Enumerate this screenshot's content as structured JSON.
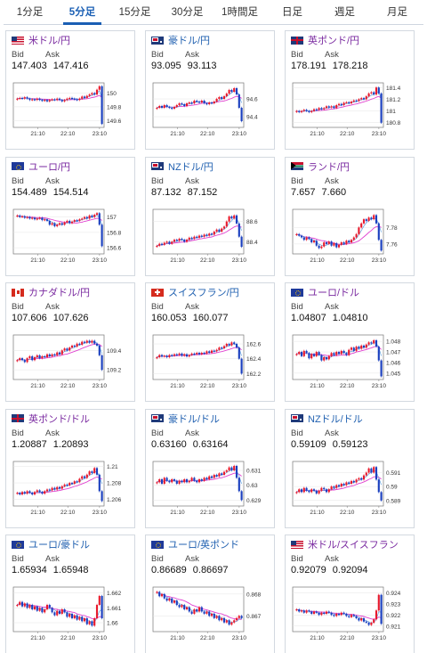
{
  "tabs": [
    {
      "label": "1分足",
      "active": false
    },
    {
      "label": "5分足",
      "active": true
    },
    {
      "label": "15分足",
      "active": false
    },
    {
      "label": "30分足",
      "active": false
    },
    {
      "label": "1時間足",
      "active": false
    },
    {
      "label": "日足",
      "active": false
    },
    {
      "label": "週足",
      "active": false
    },
    {
      "label": "月足",
      "active": false
    }
  ],
  "labels": {
    "bid": "Bid",
    "ask": "Ask"
  },
  "colors": {
    "tab_active": "#1a5fb4",
    "pair_link": "#2060b0",
    "pair_visited": "#7a2aa0",
    "candle_up": "#e8192c",
    "candle_down": "#1a3fbf",
    "ma_line": "#e040d0",
    "ma_line2": "#5fa0e0"
  },
  "cards": [
    {
      "pair": "米ドル/円",
      "flags": [
        "us",
        "jp"
      ],
      "visited": true,
      "bid": "147.403",
      "ask": "147.416",
      "chart_data": {
        "type": "candlestick",
        "x_ticks": [
          "21:10",
          "22:10",
          "23:10"
        ],
        "y_ticks": [
          "150",
          "149.8",
          "149.6"
        ],
        "y_range": [
          149.5,
          150.15
        ],
        "closes": [
          149.92,
          149.93,
          149.92,
          149.94,
          149.92,
          149.9,
          149.91,
          149.9,
          149.92,
          149.9,
          149.89,
          149.9,
          149.88,
          149.9,
          149.91,
          149.9,
          149.92,
          149.9,
          149.88,
          149.9,
          149.92,
          149.93,
          149.92,
          149.91,
          149.9,
          149.92,
          149.95,
          149.93,
          149.96,
          149.98,
          150.0,
          149.98,
          150.05,
          150.1,
          149.55
        ]
      }
    },
    {
      "pair": "豪ドル/円",
      "flags": [
        "au",
        "jp"
      ],
      "visited": false,
      "bid": "93.095",
      "ask": "93.113",
      "chart_data": {
        "type": "candlestick",
        "x_ticks": [
          "21:10",
          "22:10",
          "23:10"
        ],
        "y_ticks": [
          "94.6",
          "94.4"
        ],
        "y_range": [
          94.28,
          94.78
        ],
        "closes": [
          94.5,
          94.52,
          94.5,
          94.53,
          94.51,
          94.5,
          94.49,
          94.51,
          94.53,
          94.55,
          94.54,
          94.52,
          94.55,
          94.56,
          94.55,
          94.58,
          94.57,
          94.56,
          94.58,
          94.55,
          94.54,
          94.56,
          94.55,
          94.57,
          94.6,
          94.62,
          94.6,
          94.63,
          94.66,
          94.7,
          94.68,
          94.72,
          94.65,
          94.5,
          94.35
        ]
      }
    },
    {
      "pair": "英ポンド/円",
      "flags": [
        "gb",
        "jp"
      ],
      "visited": true,
      "bid": "178.191",
      "ask": "178.218",
      "chart_data": {
        "type": "candlestick",
        "x_ticks": [
          "21:10",
          "22:10",
          "23:10"
        ],
        "y_ticks": [
          "181.4",
          "181.2",
          "181",
          "180.8"
        ],
        "y_range": [
          180.72,
          181.48
        ],
        "closes": [
          181.0,
          180.98,
          181.0,
          181.02,
          181.0,
          180.98,
          181.0,
          181.03,
          181.02,
          181.05,
          181.03,
          181.05,
          181.08,
          181.06,
          181.08,
          181.05,
          181.1,
          181.12,
          181.1,
          181.14,
          181.15,
          181.13,
          181.16,
          181.18,
          181.17,
          181.2,
          181.22,
          181.2,
          181.25,
          181.3,
          181.32,
          181.28,
          181.4,
          181.3,
          180.8
        ]
      }
    },
    {
      "pair": "ユーロ/円",
      "flags": [
        "eu",
        "jp"
      ],
      "visited": true,
      "bid": "154.489",
      "ask": "154.514",
      "chart_data": {
        "type": "candlestick",
        "x_ticks": [
          "21:10",
          "22:10",
          "23:10"
        ],
        "y_ticks": [
          "157",
          "156.8",
          "156.6"
        ],
        "y_range": [
          156.52,
          157.1
        ],
        "closes": [
          157.02,
          157.0,
          157.01,
          156.99,
          157.0,
          156.98,
          156.99,
          156.97,
          156.98,
          156.99,
          156.96,
          156.97,
          156.95,
          156.9,
          156.92,
          156.88,
          156.9,
          156.92,
          156.9,
          156.93,
          156.95,
          156.92,
          156.94,
          156.96,
          156.95,
          156.97,
          156.98,
          157.0,
          156.98,
          157.02,
          157.0,
          157.03,
          157.05,
          156.9,
          156.62
        ]
      }
    },
    {
      "pair": "NZドル/円",
      "flags": [
        "nz",
        "jp"
      ],
      "visited": false,
      "bid": "87.132",
      "ask": "87.152",
      "chart_data": {
        "type": "candlestick",
        "x_ticks": [
          "21:10",
          "22:10",
          "23:10"
        ],
        "y_ticks": [
          "88.6",
          "88.4"
        ],
        "y_range": [
          88.28,
          88.72
        ],
        "closes": [
          88.36,
          88.38,
          88.37,
          88.39,
          88.4,
          88.38,
          88.4,
          88.42,
          88.41,
          88.43,
          88.42,
          88.4,
          88.42,
          88.44,
          88.43,
          88.45,
          88.44,
          88.46,
          88.45,
          88.47,
          88.46,
          88.48,
          88.47,
          88.5,
          88.52,
          88.5,
          88.53,
          88.55,
          88.6,
          88.65,
          88.63,
          88.66,
          88.58,
          88.45,
          88.35
        ]
      }
    },
    {
      "pair": "ランド/円",
      "flags": [
        "za",
        "jp"
      ],
      "visited": true,
      "bid": "7.657",
      "ask": "7.660",
      "chart_data": {
        "type": "candlestick",
        "x_ticks": [
          "21:10",
          "22:10",
          "23:10"
        ],
        "y_ticks": [
          "7.78",
          "7.76"
        ],
        "y_range": [
          7.748,
          7.802
        ],
        "closes": [
          7.772,
          7.77,
          7.768,
          7.765,
          7.768,
          7.766,
          7.762,
          7.764,
          7.758,
          7.755,
          7.757,
          7.762,
          7.76,
          7.763,
          7.758,
          7.761,
          7.756,
          7.759,
          7.762,
          7.76,
          7.764,
          7.762,
          7.765,
          7.768,
          7.772,
          7.78,
          7.785,
          7.79,
          7.788,
          7.792,
          7.79,
          7.795,
          7.785,
          7.765,
          7.752
        ]
      }
    },
    {
      "pair": "カナダドル/円",
      "flags": [
        "ca",
        "jp"
      ],
      "visited": true,
      "bid": "107.606",
      "ask": "107.626",
      "chart_data": {
        "type": "candlestick",
        "x_ticks": [
          "21:10",
          "22:10",
          "23:10"
        ],
        "y_ticks": [
          "109.4",
          "109.2"
        ],
        "y_range": [
          109.1,
          109.56
        ],
        "closes": [
          109.3,
          109.32,
          109.3,
          109.28,
          109.32,
          109.34,
          109.3,
          109.33,
          109.35,
          109.32,
          109.34,
          109.33,
          109.36,
          109.34,
          109.36,
          109.35,
          109.38,
          109.36,
          109.4,
          109.42,
          109.4,
          109.43,
          109.45,
          109.44,
          109.47,
          109.46,
          109.49,
          109.48,
          109.5,
          109.48,
          109.5,
          109.47,
          109.45,
          109.35,
          109.2
        ]
      }
    },
    {
      "pair": "スイスフラン/円",
      "flags": [
        "ch",
        "jp"
      ],
      "visited": false,
      "bid": "160.053",
      "ask": "160.077",
      "chart_data": {
        "type": "candlestick",
        "x_ticks": [
          "21:10",
          "22:10",
          "23:10"
        ],
        "y_ticks": [
          "162.6",
          "162.4",
          "162.2"
        ],
        "y_range": [
          162.12,
          162.72
        ],
        "closes": [
          162.42,
          162.45,
          162.43,
          162.44,
          162.42,
          162.45,
          162.44,
          162.46,
          162.45,
          162.47,
          162.44,
          162.46,
          162.43,
          162.45,
          162.47,
          162.46,
          162.48,
          162.46,
          162.48,
          162.47,
          162.5,
          162.48,
          162.51,
          162.5,
          162.52,
          162.55,
          162.54,
          162.57,
          162.6,
          162.58,
          162.62,
          162.6,
          162.55,
          162.4,
          162.2
        ]
      }
    },
    {
      "pair": "ユーロ/ドル",
      "flags": [
        "eu",
        "us"
      ],
      "visited": true,
      "bid": "1.04807",
      "ask": "1.04810",
      "chart_data": {
        "type": "candlestick",
        "x_ticks": [
          "21:10",
          "22:10",
          "23:10"
        ],
        "y_ticks": [
          "1.048",
          "1.047",
          "1.046",
          "1.045"
        ],
        "y_range": [
          1.0444,
          1.0486
        ],
        "closes": [
          1.0468,
          1.047,
          1.0466,
          1.0471,
          1.0469,
          1.0464,
          1.0468,
          1.0466,
          1.047,
          1.0467,
          1.0462,
          1.0465,
          1.0463,
          1.0466,
          1.0469,
          1.0467,
          1.047,
          1.0468,
          1.0471,
          1.0469,
          1.0467,
          1.0472,
          1.0474,
          1.0471,
          1.0475,
          1.0473,
          1.0476,
          1.0474,
          1.0477,
          1.0479,
          1.0478,
          1.0481,
          1.0475,
          1.0462,
          1.0447
        ]
      }
    },
    {
      "pair": "英ポンド/ドル",
      "flags": [
        "gb",
        "us"
      ],
      "visited": true,
      "bid": "1.20887",
      "ask": "1.20893",
      "chart_data": {
        "type": "candlestick",
        "x_ticks": [
          "21:10",
          "22:10",
          "23:10"
        ],
        "y_ticks": [
          "1.21",
          "1.208",
          "1.206"
        ],
        "y_range": [
          1.2052,
          1.2106
        ],
        "closes": [
          1.2068,
          1.2066,
          1.2069,
          1.2067,
          1.207,
          1.2068,
          1.2066,
          1.2069,
          1.2071,
          1.2069,
          1.2067,
          1.207,
          1.2072,
          1.2071,
          1.2074,
          1.2072,
          1.2075,
          1.2073,
          1.2076,
          1.2078,
          1.2077,
          1.208,
          1.2079,
          1.2082,
          1.2081,
          1.2085,
          1.2088,
          1.2086,
          1.209,
          1.2094,
          1.2092,
          1.2098,
          1.209,
          1.207,
          1.2058
        ]
      }
    },
    {
      "pair": "豪ドル/ドル",
      "flags": [
        "au",
        "us"
      ],
      "visited": false,
      "bid": "0.63160",
      "ask": "0.63164",
      "chart_data": {
        "type": "candlestick",
        "x_ticks": [
          "21:10",
          "22:10",
          "23:10"
        ],
        "y_ticks": [
          "0.631",
          "0.63",
          "0.629"
        ],
        "y_range": [
          0.6286,
          0.6316
        ],
        "closes": [
          0.6302,
          0.6304,
          0.6301,
          0.6305,
          0.6303,
          0.6302,
          0.6304,
          0.6303,
          0.6301,
          0.6303,
          0.6302,
          0.6304,
          0.6302,
          0.6303,
          0.6305,
          0.6303,
          0.6302,
          0.6304,
          0.6303,
          0.6305,
          0.6304,
          0.6306,
          0.6305,
          0.6307,
          0.6306,
          0.6308,
          0.6307,
          0.6309,
          0.631,
          0.6312,
          0.631,
          0.6313,
          0.6305,
          0.6296,
          0.629
        ]
      }
    },
    {
      "pair": "NZドル/ドル",
      "flags": [
        "nz",
        "us"
      ],
      "visited": false,
      "bid": "0.59109",
      "ask": "0.59123",
      "chart_data": {
        "type": "candlestick",
        "x_ticks": [
          "21:10",
          "22:10",
          "23:10"
        ],
        "y_ticks": [
          "0.591",
          "0.59",
          "0.589"
        ],
        "y_range": [
          0.5886,
          0.5918
        ],
        "closes": [
          0.5896,
          0.5898,
          0.5896,
          0.5899,
          0.5897,
          0.5896,
          0.5898,
          0.5897,
          0.5895,
          0.5897,
          0.5899,
          0.5898,
          0.5896,
          0.5898,
          0.59,
          0.5899,
          0.5901,
          0.59,
          0.5902,
          0.5901,
          0.5903,
          0.5902,
          0.5904,
          0.5903,
          0.5905,
          0.5906,
          0.5905,
          0.5908,
          0.591,
          0.5913,
          0.591,
          0.5914,
          0.5905,
          0.5896,
          0.589
        ]
      }
    },
    {
      "pair": "ユーロ/豪ドル",
      "flags": [
        "eu",
        "au"
      ],
      "visited": false,
      "bid": "1.65934",
      "ask": "1.65948",
      "chart_data": {
        "type": "candlestick",
        "x_ticks": [
          "21:10",
          "22:10",
          "23:10"
        ],
        "y_ticks": [
          "1.662",
          "1.661",
          "1.66"
        ],
        "y_range": [
          1.6594,
          1.6624
        ],
        "closes": [
          1.6612,
          1.6614,
          1.6611,
          1.6613,
          1.661,
          1.6612,
          1.6609,
          1.6611,
          1.6608,
          1.661,
          1.6607,
          1.6609,
          1.6612,
          1.661,
          1.6607,
          1.6605,
          1.6608,
          1.6606,
          1.6609,
          1.6607,
          1.6604,
          1.6606,
          1.6603,
          1.6605,
          1.6602,
          1.6604,
          1.6601,
          1.6603,
          1.6599,
          1.6601,
          1.6598,
          1.6603,
          1.6612,
          1.6618,
          1.6603
        ]
      }
    },
    {
      "pair": "ユーロ/英ポンド",
      "flags": [
        "eu",
        "gb"
      ],
      "visited": false,
      "bid": "0.86689",
      "ask": "0.86697",
      "chart_data": {
        "type": "candlestick",
        "x_ticks": [
          "21:10",
          "22:10",
          "23:10"
        ],
        "y_ticks": [
          "0.868",
          "0.867"
        ],
        "y_range": [
          0.86628,
          0.86832
        ],
        "closes": [
          0.8681,
          0.8679,
          0.868,
          0.8678,
          0.8677,
          0.8678,
          0.8676,
          0.8677,
          0.8675,
          0.8674,
          0.8675,
          0.8673,
          0.8674,
          0.8672,
          0.8671,
          0.8673,
          0.8672,
          0.8674,
          0.8672,
          0.8671,
          0.8672,
          0.867,
          0.8671,
          0.8669,
          0.867,
          0.8668,
          0.8669,
          0.8667,
          0.8668,
          0.8666,
          0.8667,
          0.8668,
          0.8669,
          0.867,
          0.8669
        ]
      }
    },
    {
      "pair": "米ドル/スイスフラン",
      "flags": [
        "us",
        "ch"
      ],
      "visited": true,
      "bid": "0.92079",
      "ask": "0.92094",
      "chart_data": {
        "type": "candlestick",
        "x_ticks": [
          "21:10",
          "22:10",
          "23:10"
        ],
        "y_ticks": [
          "0.924",
          "0.923",
          "0.922",
          "0.921"
        ],
        "y_range": [
          0.9205,
          0.9245
        ],
        "closes": [
          0.9225,
          0.9223,
          0.9224,
          0.9222,
          0.9224,
          0.9223,
          0.9221,
          0.9223,
          0.9222,
          0.922,
          0.9222,
          0.9221,
          0.9223,
          0.9222,
          0.922,
          0.9219,
          0.9221,
          0.922,
          0.9222,
          0.9221,
          0.9219,
          0.9218,
          0.922,
          0.9219,
          0.9217,
          0.9215,
          0.9217,
          0.9214,
          0.9213,
          0.9211,
          0.9213,
          0.9216,
          0.9224,
          0.9238,
          0.9212
        ]
      }
    }
  ]
}
